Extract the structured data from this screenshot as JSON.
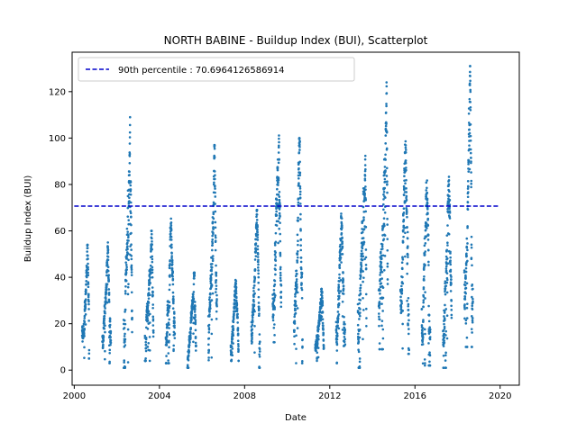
{
  "chart_data": {
    "type": "scatter",
    "title": "NORTH BABINE - Buildup Index (BUI), Scatterplot",
    "xlabel": "Date",
    "ylabel": "Buildup Index (BUI)",
    "xlim": [
      1999.9,
      2020.9
    ],
    "ylim": [
      -6.5,
      137
    ],
    "x_ticks": [
      2000,
      2004,
      2008,
      2012,
      2016,
      2020
    ],
    "y_ticks": [
      0,
      20,
      40,
      60,
      80,
      100,
      120
    ],
    "grid": false,
    "legend_position": "top-left",
    "point_color": "#1f77b4",
    "reference_line": {
      "label": "90th percentile : 70.6964126586914",
      "y": 70.6964126586914,
      "x_range": [
        2000.0,
        2020.0
      ],
      "color": "#0000cc",
      "style": "dashed"
    },
    "seasons": [
      {
        "year": 2000,
        "start": 2000.37,
        "end": 2000.7,
        "min": 5,
        "max": 54
      },
      {
        "year": 2001,
        "start": 2001.32,
        "end": 2001.72,
        "min": 3,
        "max": 55
      },
      {
        "year": 2002,
        "start": 2002.32,
        "end": 2002.72,
        "min": 1,
        "max": 109
      },
      {
        "year": 2003,
        "start": 2003.32,
        "end": 2003.72,
        "min": 4,
        "max": 60
      },
      {
        "year": 2004,
        "start": 2004.3,
        "end": 2004.72,
        "min": 3,
        "max": 67
      },
      {
        "year": 2005,
        "start": 2005.32,
        "end": 2005.72,
        "min": 1,
        "max": 42
      },
      {
        "year": 2006,
        "start": 2006.3,
        "end": 2006.7,
        "min": 1,
        "max": 97
      },
      {
        "year": 2007,
        "start": 2007.35,
        "end": 2007.72,
        "min": 4,
        "max": 41
      },
      {
        "year": 2008,
        "start": 2008.32,
        "end": 2008.72,
        "min": 1,
        "max": 69
      },
      {
        "year": 2009,
        "start": 2009.32,
        "end": 2009.72,
        "min": 12,
        "max": 104
      },
      {
        "year": 2010,
        "start": 2010.32,
        "end": 2010.72,
        "min": 3,
        "max": 100
      },
      {
        "year": 2011,
        "start": 2011.32,
        "end": 2011.72,
        "min": 4,
        "max": 35
      },
      {
        "year": 2012,
        "start": 2012.3,
        "end": 2012.72,
        "min": 3,
        "max": 70
      },
      {
        "year": 2013,
        "start": 2013.32,
        "end": 2013.72,
        "min": 1,
        "max": 101
      },
      {
        "year": 2014,
        "start": 2014.3,
        "end": 2014.72,
        "min": 9,
        "max": 124
      },
      {
        "year": 2015,
        "start": 2015.32,
        "end": 2015.72,
        "min": 7,
        "max": 108
      },
      {
        "year": 2016,
        "start": 2016.32,
        "end": 2016.72,
        "min": 2,
        "max": 88
      },
      {
        "year": 2017,
        "start": 2017.32,
        "end": 2017.72,
        "min": 1,
        "max": 93
      },
      {
        "year": 2018,
        "start": 2018.32,
        "end": 2018.72,
        "min": 10,
        "max": 131
      }
    ]
  }
}
